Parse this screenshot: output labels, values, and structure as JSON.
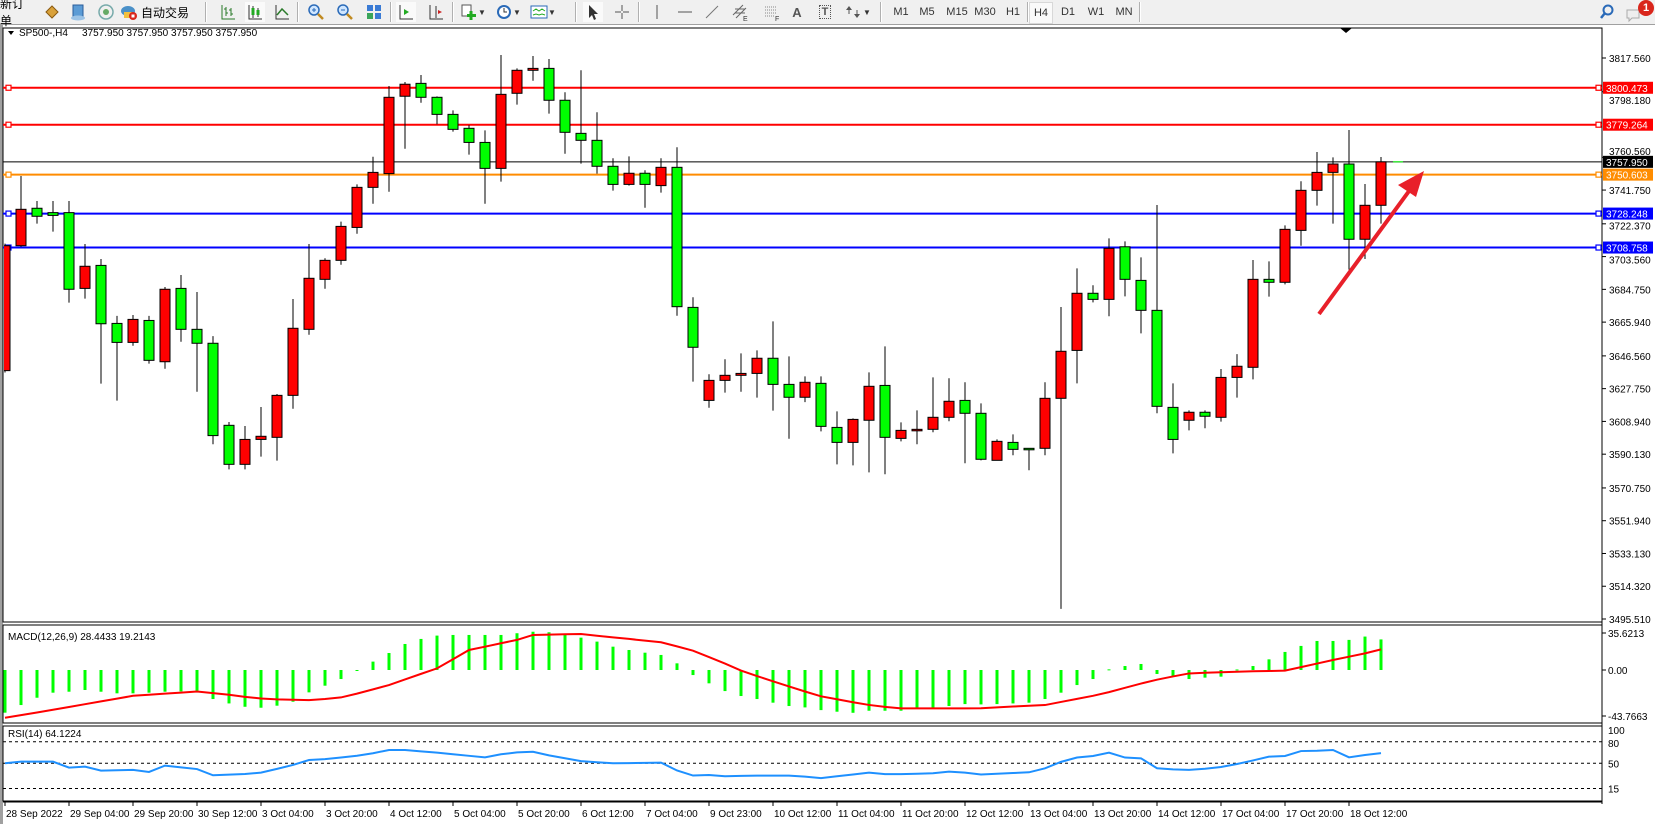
{
  "toolbar": {
    "new_order": "新订单",
    "auto_trade": "自动交易",
    "timeframes": [
      "M1",
      "M5",
      "M15",
      "M30",
      "H1",
      "H4",
      "D1",
      "W1",
      "MN"
    ],
    "active_timeframe": "H4",
    "notification_count": "1",
    "drawing_tools": {
      "fibo_channel_letter": "E",
      "fibo_letter": "F",
      "text_letter": "A",
      "label_letter": "T"
    }
  },
  "chart": {
    "symbol": "SP500-,H4",
    "ohlc_readout": "3757.950 3757.950 3757.950 3757.950",
    "price_axis_labels": [
      "3817.560",
      "3798.180",
      "3760.560",
      "3741.750",
      "3722.370",
      "3703.560",
      "3684.750",
      "3665.940",
      "3646.560",
      "3627.750",
      "3608.940",
      "3590.130",
      "3570.750",
      "3551.940",
      "3533.130",
      "3514.320",
      "3495.510"
    ],
    "horizontal_lines": [
      {
        "price": "3800.473",
        "color": "#ff0000"
      },
      {
        "price": "3779.264",
        "color": "#ff0000"
      },
      {
        "price": "3750.603",
        "color": "#ff8c00"
      },
      {
        "price": "3728.248",
        "color": "#0000ff"
      },
      {
        "price": "3708.758",
        "color": "#0000ff"
      }
    ],
    "current_price": "3757.950",
    "current_price_color": "#000000",
    "arrow_color": "#e8202a",
    "time_labels": [
      {
        "index": 0,
        "text": "28 Sep 2022"
      },
      {
        "index": 4,
        "text": "29 Sep 04:00"
      },
      {
        "index": 8,
        "text": "29 Sep 20:00"
      },
      {
        "index": 12,
        "text": "30 Sep 12:00"
      },
      {
        "index": 16,
        "text": "3 Oct 04:00"
      },
      {
        "index": 20,
        "text": "3 Oct 20:00"
      },
      {
        "index": 24,
        "text": "4 Oct 12:00"
      },
      {
        "index": 28,
        "text": "5 Oct 04:00"
      },
      {
        "index": 32,
        "text": "5 Oct 20:00"
      },
      {
        "index": 36,
        "text": "6 Oct 12:00"
      },
      {
        "index": 40,
        "text": "7 Oct 04:00"
      },
      {
        "index": 44,
        "text": "9 Oct 23:00"
      },
      {
        "index": 48,
        "text": "10 Oct 12:00"
      },
      {
        "index": 52,
        "text": "11 Oct 04:00"
      },
      {
        "index": 56,
        "text": "11 Oct 20:00"
      },
      {
        "index": 60,
        "text": "12 Oct 12:00"
      },
      {
        "index": 64,
        "text": "13 Oct 04:00"
      },
      {
        "index": 68,
        "text": "13 Oct 20:00"
      },
      {
        "index": 72,
        "text": "14 Oct 12:00"
      },
      {
        "index": 76,
        "text": "17 Oct 04:00"
      },
      {
        "index": 80,
        "text": "17 Oct 20:00"
      },
      {
        "index": 84,
        "text": "18 Oct 12:00"
      }
    ]
  },
  "chart_data": {
    "type": "candlestick",
    "bull_color": "#ff0000",
    "bear_color": "#00ff00",
    "ylim": [
      3495.51,
      3817.56
    ],
    "ohlc": [
      [
        3638.1,
        3711,
        3637,
        3709.8
      ],
      [
        3709.8,
        3749.8,
        3709.2,
        3730.7
      ],
      [
        3731.3,
        3735.5,
        3722.5,
        3726.7
      ],
      [
        3728.8,
        3735.5,
        3717.9,
        3727.2
      ],
      [
        3728.8,
        3735.5,
        3677.1,
        3684.8
      ],
      [
        3685.3,
        3710.8,
        3679.4,
        3698.0
      ],
      [
        3698.5,
        3702.2,
        3630.6,
        3665.0
      ],
      [
        3665.2,
        3669.5,
        3620.9,
        3654.3
      ],
      [
        3654.3,
        3670.0,
        3652.4,
        3667.5
      ],
      [
        3666.9,
        3669.5,
        3642.1,
        3644.0
      ],
      [
        3643.2,
        3686.1,
        3639.2,
        3684.8
      ],
      [
        3685.3,
        3693.0,
        3654.7,
        3661.8
      ],
      [
        3661.8,
        3683.2,
        3626.0,
        3653.8
      ],
      [
        3653.8,
        3657.9,
        3595.8,
        3600.8
      ],
      [
        3606.7,
        3608.6,
        3581.4,
        3584.3
      ],
      [
        3584.3,
        3606.3,
        3581.4,
        3598.6
      ],
      [
        3598.6,
        3617.2,
        3588.7,
        3600.4
      ],
      [
        3599.8,
        3624.7,
        3586.4,
        3623.9
      ],
      [
        3623.9,
        3679.2,
        3616.2,
        3662.4
      ],
      [
        3661.8,
        3710.8,
        3658.7,
        3691.1
      ],
      [
        3690.5,
        3702.6,
        3685.1,
        3701.4
      ],
      [
        3701.4,
        3723.6,
        3698.9,
        3720.9
      ],
      [
        3720.3,
        3745.0,
        3716.7,
        3743.3
      ],
      [
        3743.3,
        3760.9,
        3733.9,
        3751.9
      ],
      [
        3751.2,
        3801.5,
        3740.8,
        3795.0
      ],
      [
        3795.6,
        3803.8,
        3765.5,
        3802.5
      ],
      [
        3803.0,
        3807.8,
        3791.9,
        3795.0
      ],
      [
        3795.0,
        3795.5,
        3779.5,
        3785.2
      ],
      [
        3785.2,
        3787.5,
        3775.3,
        3776.6
      ],
      [
        3777.2,
        3779.0,
        3762.1,
        3769.1
      ],
      [
        3769.1,
        3776.0,
        3733.9,
        3754.2
      ],
      [
        3754.2,
        3819.3,
        3746.6,
        3796.7
      ],
      [
        3797.3,
        3811.6,
        3790.8,
        3810.5
      ],
      [
        3810.5,
        3818.7,
        3804.5,
        3811.6
      ],
      [
        3811.6,
        3817.0,
        3785.6,
        3793.3
      ],
      [
        3793.3,
        3797.9,
        3762.6,
        3774.9
      ],
      [
        3774.3,
        3810.5,
        3756.9,
        3770.3
      ],
      [
        3770.3,
        3786.4,
        3751.2,
        3755.4
      ],
      [
        3755.4,
        3760.0,
        3741.4,
        3745.0
      ],
      [
        3745.0,
        3761.1,
        3744.3,
        3751.4
      ],
      [
        3751.4,
        3753.1,
        3731.6,
        3745.0
      ],
      [
        3744.3,
        3760.0,
        3740.3,
        3754.8
      ],
      [
        3754.8,
        3766.3,
        3669.6,
        3674.8
      ],
      [
        3674.4,
        3680.2,
        3631.8,
        3651.5
      ],
      [
        3621.0,
        3636.0,
        3616.8,
        3632.5
      ],
      [
        3632.5,
        3644.6,
        3625.5,
        3635.4
      ],
      [
        3635.4,
        3648.0,
        3626.0,
        3636.5
      ],
      [
        3636.5,
        3649.7,
        3622.6,
        3645.2
      ],
      [
        3645.2,
        3666.4,
        3615.1,
        3630.2
      ],
      [
        3630.2,
        3646.3,
        3599.0,
        3622.8
      ],
      [
        3622.8,
        3634.8,
        3620.0,
        3631.4
      ],
      [
        3630.8,
        3634.8,
        3603.2,
        3606.1
      ],
      [
        3605.5,
        3614.7,
        3584.3,
        3596.9
      ],
      [
        3596.9,
        3610.7,
        3583.7,
        3610.1
      ],
      [
        3609.6,
        3637.1,
        3579.7,
        3629.1
      ],
      [
        3629.6,
        3652.0,
        3578.6,
        3599.8
      ],
      [
        3599.2,
        3608.4,
        3597.5,
        3603.8
      ],
      [
        3603.8,
        3615.3,
        3595.8,
        3604.4
      ],
      [
        3604.4,
        3634.2,
        3602.7,
        3611.3
      ],
      [
        3611.3,
        3633.7,
        3609.0,
        3620.5
      ],
      [
        3621.0,
        3631.4,
        3584.9,
        3613.6
      ],
      [
        3613.6,
        3619.3,
        3586.6,
        3587.2
      ],
      [
        3586.6,
        3598.6,
        3586.6,
        3597.5
      ],
      [
        3596.9,
        3601.5,
        3589.5,
        3592.9
      ],
      [
        3593.5,
        3593.5,
        3580.9,
        3592.9
      ],
      [
        3593.5,
        3631.4,
        3589.5,
        3622.2
      ],
      [
        3622.2,
        3674.6,
        3501.3,
        3649.2
      ],
      [
        3649.7,
        3696.8,
        3630.8,
        3682.5
      ],
      [
        3682.5,
        3687.1,
        3677.3,
        3679.0
      ],
      [
        3679.0,
        3714.0,
        3669.3,
        3708.3
      ],
      [
        3709.2,
        3712.3,
        3680.7,
        3690.5
      ],
      [
        3689.9,
        3703.1,
        3659.5,
        3672.7
      ],
      [
        3672.7,
        3733.2,
        3613.6,
        3617.6
      ],
      [
        3617.0,
        3630.8,
        3590.6,
        3598.6
      ],
      [
        3609.6,
        3615.3,
        3603.8,
        3614.2
      ],
      [
        3614.2,
        3615.3,
        3605.0,
        3611.9
      ],
      [
        3611.3,
        3639.0,
        3608.8,
        3634.2
      ],
      [
        3634.2,
        3647.6,
        3622.6,
        3640.6
      ],
      [
        3640.0,
        3701.6,
        3633.1,
        3690.5
      ],
      [
        3690.5,
        3700.8,
        3680.6,
        3688.8
      ],
      [
        3688.8,
        3721.5,
        3687.6,
        3719.2
      ],
      [
        3718.6,
        3746.8,
        3709.8,
        3741.6
      ],
      [
        3741.6,
        3763.6,
        3732.8,
        3751.9
      ],
      [
        3751.9,
        3760.5,
        3722.5,
        3756.7
      ],
      [
        3756.7,
        3776.2,
        3696.1,
        3713.5
      ],
      [
        3713.5,
        3745.2,
        3702.2,
        3733.0
      ],
      [
        3733.0,
        3760.7,
        3722.5,
        3757.95
      ]
    ],
    "macd": {
      "label": "MACD(12,26,9) 28.4433 19.2143",
      "axis_labels": [
        "35.6213",
        "0.00",
        "-43.7663"
      ],
      "ylim": [
        -43.7663,
        35.6213
      ],
      "histogram_color": "#00ff00",
      "signal_color": "#ff0000",
      "histogram": [
        -39.7,
        -32.6,
        -25.8,
        -21.1,
        -20.2,
        -18.6,
        -20.2,
        -21.7,
        -21.7,
        -21.1,
        -20.2,
        -19.9,
        -19.3,
        -27.0,
        -31.1,
        -34.2,
        -35.1,
        -33.2,
        -29.5,
        -20.8,
        -14.6,
        -8.4,
        -0.6,
        7.8,
        15.8,
        24.2,
        28.9,
        32.0,
        32.6,
        32.6,
        32.6,
        32.6,
        34.2,
        35.6,
        35.1,
        32.6,
        30.1,
        26.4,
        21.7,
        18.6,
        16.1,
        14.0,
        6.2,
        -4.7,
        -12.4,
        -19.6,
        -24.2,
        -27.0,
        -30.4,
        -33.5,
        -34.8,
        -37.3,
        -38.8,
        -39.8,
        -37.9,
        -37.9,
        -37.9,
        -35.7,
        -35.7,
        -33.5,
        -31.7,
        -32.0,
        -31.7,
        -31.1,
        -30.4,
        -27.0,
        -21.1,
        -14.0,
        -8.4,
        0.6,
        3.7,
        5.6,
        -3.7,
        -6.2,
        -8.4,
        -7.1,
        -6.2,
        0.5,
        3.7,
        9.9,
        16.8,
        22.4,
        27.0,
        27.0,
        28.0,
        31.1,
        28.44
      ],
      "signal": [
        -44.4,
        -42,
        -39.5,
        -37,
        -34.4,
        -31.8,
        -29.2,
        -26.6,
        -24,
        -23,
        -22,
        -21,
        -20,
        -21.5,
        -23,
        -25,
        -26.5,
        -27.3,
        -27.7,
        -28,
        -27,
        -25.5,
        -22,
        -18,
        -14,
        -8.8,
        -3.6,
        1.5,
        10,
        18.6,
        21.7,
        24.9,
        28,
        32.6,
        32.9,
        33.2,
        33.5,
        31.9,
        30.3,
        28.9,
        27.3,
        25.8,
        22,
        18,
        12,
        6,
        -0.5,
        -5.6,
        -10.5,
        -15.3,
        -20,
        -24.5,
        -27.2,
        -30,
        -32.5,
        -34.3,
        -35.7,
        -35.7,
        -35.7,
        -35.7,
        -35.7,
        -35.6,
        -34.8,
        -34,
        -33.3,
        -32.6,
        -29.7,
        -26.9,
        -24,
        -20.6,
        -16.6,
        -12.6,
        -9,
        -6,
        -3.2,
        -2.6,
        -2.1,
        -1.6,
        -1.2,
        -0.9,
        -0.6,
        2.7,
        6,
        9.3,
        12.4,
        15.5,
        19.21
      ]
    },
    "rsi": {
      "label": "RSI(14) 64.1224",
      "axis_labels": [
        "100",
        "80",
        "50",
        "15"
      ],
      "levels": [
        80,
        50,
        15
      ],
      "ylim": [
        0,
        100
      ],
      "color": "#1e90ff",
      "values": [
        50,
        52.3,
        52.3,
        52.3,
        44,
        45.4,
        39.8,
        40.3,
        40.8,
        38,
        46.8,
        44.4,
        42,
        33.4,
        34.3,
        35.2,
        37,
        42.3,
        47.7,
        54.6,
        55.8,
        58,
        60.5,
        64,
        68.5,
        68.5,
        66.6,
        64.8,
        62.6,
        60.4,
        58.3,
        62.5,
        65.2,
        66,
        61,
        57,
        53,
        51.5,
        50,
        50.3,
        50.6,
        51,
        40,
        33,
        33.8,
        32,
        32.5,
        32.9,
        32.9,
        32.9,
        31.5,
        29.5,
        32,
        34.5,
        37,
        35,
        35,
        35.5,
        36.2,
        38.5,
        37,
        34.5,
        35.5,
        36.5,
        37.5,
        43,
        52,
        58,
        60.2,
        64.8,
        58,
        56.9,
        43.1,
        41.5,
        40.8,
        42.5,
        44.9,
        49,
        54,
        59.2,
        60.2,
        67,
        67.5,
        68.5,
        58.3,
        61.5,
        64.1224
      ]
    }
  }
}
